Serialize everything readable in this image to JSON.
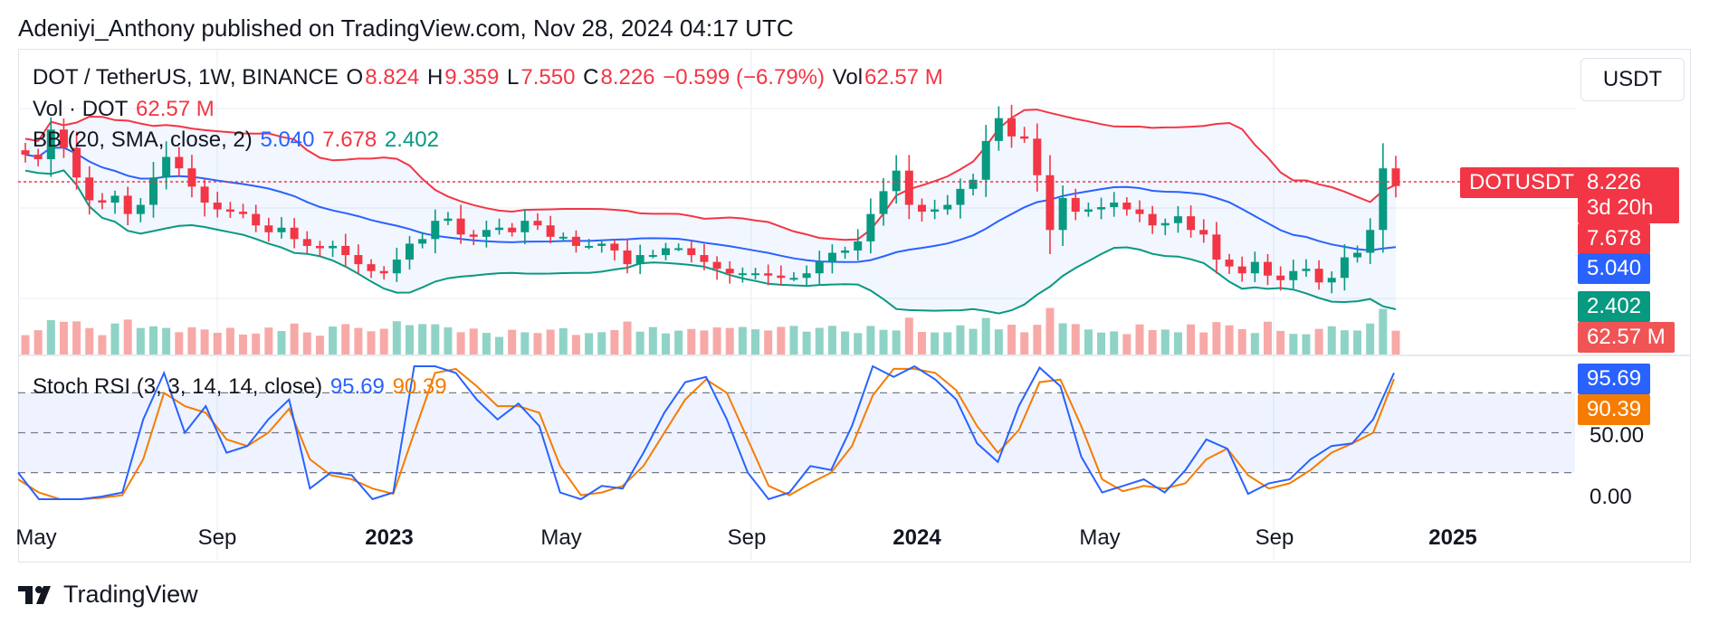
{
  "header": {
    "published": "Adeniyi_Anthony published on TradingView.com, Nov 28, 2024 04:17 UTC"
  },
  "legend": {
    "symbol": "DOT / TetherUS, 1W, BINANCE",
    "o_label": "O",
    "o": "8.824",
    "h_label": "H",
    "h": "9.359",
    "l_label": "L",
    "l": "7.550",
    "c_label": "C",
    "c": "8.226",
    "change": "−0.599 (−6.79%)",
    "vol_label": "Vol",
    "vol": "62.57 M",
    "vol_line_label": "Vol · DOT",
    "vol_line_value": "62.57 M",
    "bb_label": "BB (20, SMA, close, 2)",
    "bb_basis": "5.040",
    "bb_upper": "7.678",
    "bb_lower": "2.402",
    "stoch_label": "Stoch RSI (3, 3, 14, 14, close)",
    "stoch_k": "95.69",
    "stoch_d": "90.39"
  },
  "currency_button": "USDT",
  "price_tags": {
    "symbol": "DOTUSDT",
    "price": "8.226",
    "countdown": "3d 20h",
    "upper": "7.678",
    "basis": "5.040",
    "lower": "2.402",
    "volume": "62.57 M",
    "stoch_k": "95.69",
    "stoch_d": "90.39"
  },
  "stoch_axis": {
    "mid": "50.00",
    "low": "0.00"
  },
  "time_axis": [
    "May",
    "Sep",
    "2023",
    "May",
    "Sep",
    "2024",
    "May",
    "Sep",
    "2025"
  ],
  "footer": {
    "brand": "TradingView"
  },
  "colors": {
    "up": "#089981",
    "down": "#f23645",
    "basis": "#2962ff",
    "k": "#2962ff",
    "d": "#f57c00"
  },
  "chart_data": {
    "type": "candlestick",
    "symbol": "DOT / TetherUS",
    "interval": "1W",
    "price_range": [
      1,
      14
    ],
    "stoch_levels": [
      0,
      20,
      50,
      80,
      100
    ],
    "weekly_close_approx": [
      9.6,
      9.4,
      10.7,
      9.9,
      8.6,
      7.6,
      7.5,
      7.8,
      7.0,
      7.4,
      8.6,
      9.5,
      9.0,
      8.2,
      7.5,
      7.2,
      7.1,
      7.0,
      6.5,
      6.2,
      6.4,
      5.9,
      5.6,
      5.5,
      5.6,
      5.2,
      4.8,
      4.5,
      4.4,
      5.0,
      5.7,
      5.9,
      6.7,
      6.8,
      6.1,
      6.0,
      6.3,
      6.4,
      6.2,
      6.7,
      6.5,
      6.0,
      6.0,
      5.6,
      5.6,
      5.7,
      5.4,
      4.8,
      5.2,
      5.2,
      5.5,
      5.5,
      5.2,
      4.9,
      4.6,
      4.4,
      4.4,
      4.4,
      4.3,
      4.2,
      4.2,
      4.4,
      4.9,
      5.3,
      5.4,
      5.8,
      7.0,
      8.0,
      8.9,
      7.4,
      7.1,
      7.2,
      7.4,
      8.1,
      8.5,
      10.2,
      11.2,
      10.4,
      10.3,
      8.7,
      6.3,
      7.7,
      7.1,
      7.2,
      7.3,
      7.5,
      7.2,
      7.0,
      6.5,
      6.6,
      6.9,
      6.3,
      6.1,
      5.0,
      4.7,
      4.4,
      4.9,
      4.3,
      4.1,
      4.5,
      4.6,
      4.0,
      4.2,
      5.1,
      5.3,
      6.3,
      9.0,
      8.226
    ],
    "stoch_k_approx": [
      20,
      0,
      0,
      0,
      2,
      5,
      60,
      95,
      50,
      70,
      35,
      40,
      60,
      75,
      8,
      20,
      18,
      0,
      5,
      100,
      100,
      95,
      75,
      60,
      72,
      55,
      5,
      0,
      10,
      8,
      35,
      65,
      88,
      92,
      60,
      20,
      0,
      5,
      25,
      22,
      55,
      100,
      92,
      100,
      90,
      75,
      42,
      28,
      70,
      99,
      85,
      32,
      5,
      10,
      15,
      5,
      22,
      45,
      38,
      4,
      12,
      15,
      30,
      40,
      42,
      60,
      95
    ],
    "stoch_d_approx": [
      15,
      5,
      0,
      0,
      1,
      3,
      30,
      80,
      70,
      65,
      45,
      40,
      50,
      68,
      30,
      18,
      15,
      8,
      4,
      50,
      95,
      98,
      85,
      70,
      70,
      65,
      25,
      3,
      5,
      10,
      25,
      50,
      75,
      90,
      80,
      45,
      10,
      3,
      12,
      20,
      40,
      78,
      98,
      98,
      95,
      82,
      55,
      35,
      52,
      88,
      90,
      55,
      15,
      6,
      10,
      8,
      12,
      30,
      38,
      18,
      8,
      12,
      22,
      35,
      42,
      50,
      90.39
    ]
  }
}
